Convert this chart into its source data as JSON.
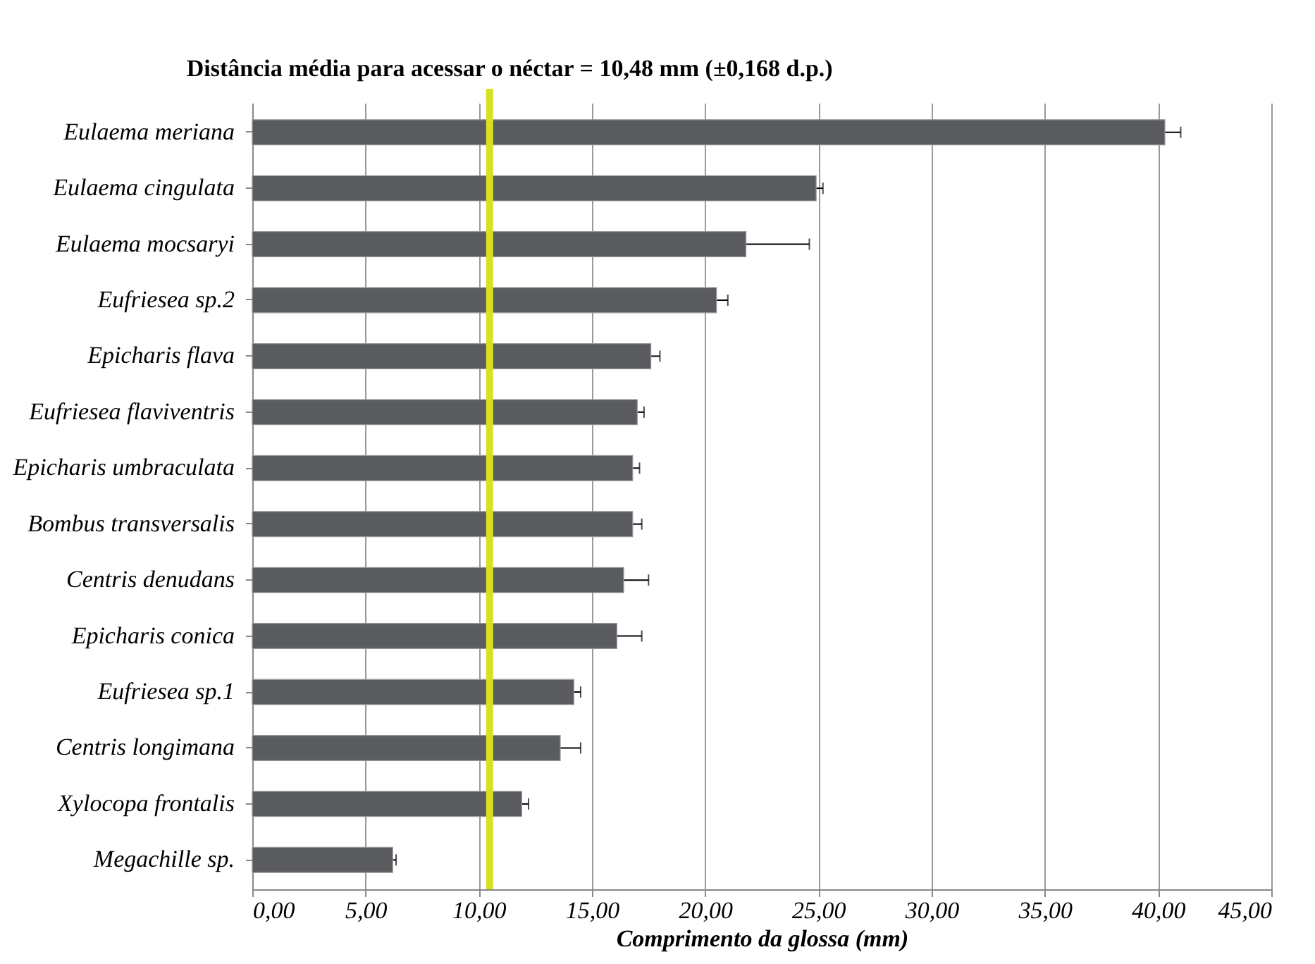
{
  "chart_data": {
    "type": "bar",
    "orientation": "horizontal",
    "xlabel": "Comprimento da glossa (mm)",
    "categories": [
      "Eulaema meriana",
      "Eulaema cingulata",
      "Eulaema mocsaryi",
      "Eufriesea sp.2",
      "Epicharis flava",
      "Eufriesea flaviventris",
      "Epicharis umbraculata",
      "Bombus transversalis",
      "Centris denudans",
      "Epicharis conica",
      "Eufriesea sp.1",
      "Centris longimana",
      "Xylocopa frontalis",
      "Megachille sp."
    ],
    "values": [
      40.3,
      24.9,
      21.8,
      20.5,
      17.6,
      17.0,
      16.8,
      16.8,
      16.4,
      16.1,
      14.2,
      13.6,
      11.9,
      6.2
    ],
    "errors": [
      0.7,
      0.3,
      2.8,
      0.5,
      0.4,
      0.3,
      0.3,
      0.4,
      1.1,
      1.1,
      0.3,
      0.9,
      0.3,
      0.15
    ],
    "color": "#5a5b5e",
    "xlim": [
      0,
      45
    ],
    "xticks": [
      {
        "value": 0,
        "label": "0,00"
      },
      {
        "value": 5,
        "label": "5,00"
      },
      {
        "value": 10,
        "label": "10,00"
      },
      {
        "value": 15,
        "label": "15,00"
      },
      {
        "value": 20,
        "label": "20,00"
      },
      {
        "value": 25,
        "label": "25,00"
      },
      {
        "value": 30,
        "label": "30,00"
      },
      {
        "value": 35,
        "label": "35,00"
      },
      {
        "value": 40,
        "label": "40,00"
      },
      {
        "value": 45,
        "label": "45,00"
      }
    ],
    "grid": "x",
    "ref_lines": [
      {
        "axis": "x",
        "value": 10.48,
        "label": "Distância  média para acessar o néctar = 10,48 mm (±0,168 d.p.)",
        "color": "#d9e021"
      }
    ]
  }
}
